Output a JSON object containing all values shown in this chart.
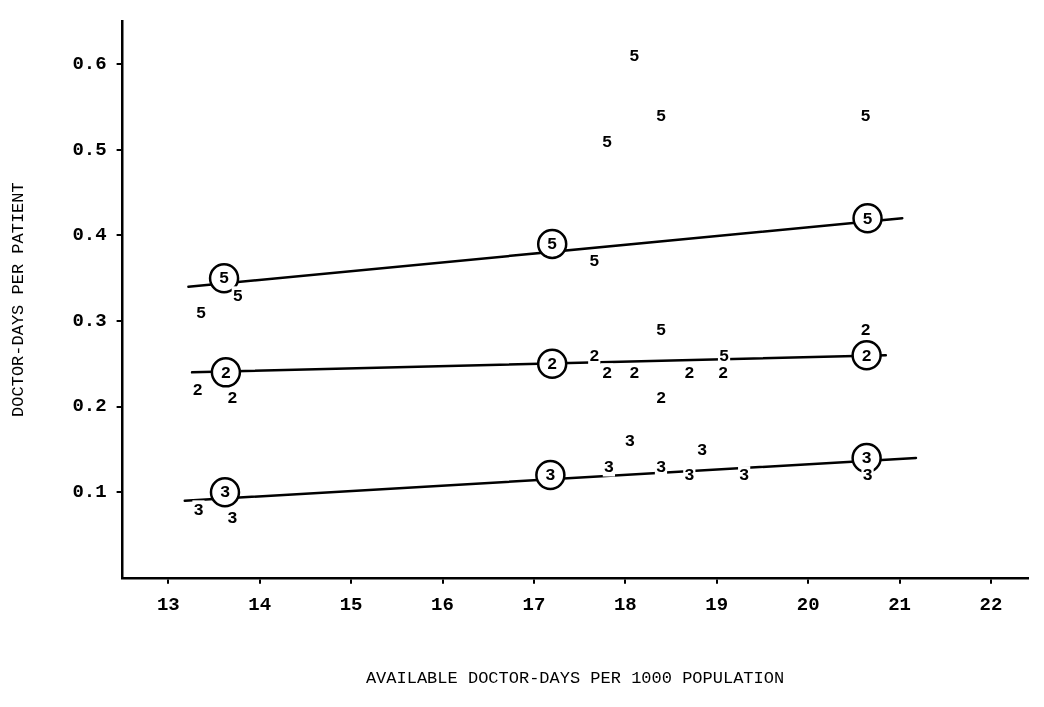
{
  "chart_data": {
    "type": "scatter",
    "xlabel": "AVAILABLE DOCTOR-DAYS PER 1000 POPULATION",
    "ylabel": "DOCTOR-DAYS PER PATIENT",
    "xlim": [
      12.5,
      22.4
    ],
    "ylim": [
      0,
      0.65
    ],
    "xticks": [
      13,
      14,
      15,
      16,
      17,
      18,
      19,
      20,
      21,
      22
    ],
    "yticks": [
      0.1,
      0.2,
      0.3,
      0.4,
      0.5,
      0.6
    ],
    "grid": false,
    "legend": false,
    "series": [
      {
        "name": "5",
        "color": "#000000",
        "marker": "circle",
        "x": [
          13.61,
          17.2,
          20.65
        ],
        "values": [
          0.35,
          0.39,
          0.42
        ]
      },
      {
        "name": "2",
        "color": "#000000",
        "marker": "circle",
        "x": [
          13.63,
          17.2,
          20.64
        ],
        "values": [
          0.24,
          0.25,
          0.26
        ]
      },
      {
        "name": "3",
        "color": "#000000",
        "marker": "circle",
        "x": [
          13.62,
          17.18,
          20.64
        ],
        "values": [
          0.1,
          0.12,
          0.14
        ]
      },
      {
        "type": "line",
        "color": "#000000",
        "x": [
          13.22,
          21.03
        ],
        "values": [
          0.34,
          0.42
        ]
      },
      {
        "type": "line",
        "color": "#000000",
        "x": [
          13.26,
          20.85
        ],
        "values": [
          0.24,
          0.26
        ]
      },
      {
        "type": "line",
        "color": "#000000",
        "x": [
          13.18,
          21.18
        ],
        "values": [
          0.09,
          0.14
        ]
      }
    ],
    "annotations": [
      {
        "text": "5",
        "x": 13.76,
        "y": 0.33
      },
      {
        "text": "5",
        "x": 13.36,
        "y": 0.31
      },
      {
        "text": "5",
        "x": 18.1,
        "y": 0.61
      },
      {
        "text": "5",
        "x": 18.39,
        "y": 0.54
      },
      {
        "text": "5",
        "x": 17.8,
        "y": 0.51
      },
      {
        "text": "5",
        "x": 20.63,
        "y": 0.54
      },
      {
        "text": "5",
        "x": 17.66,
        "y": 0.37
      },
      {
        "text": "5",
        "x": 18.39,
        "y": 0.29
      },
      {
        "text": "5",
        "x": 19.08,
        "y": 0.26
      },
      {
        "text": "2",
        "x": 13.32,
        "y": 0.22
      },
      {
        "text": "2",
        "x": 13.7,
        "y": 0.21
      },
      {
        "text": "2",
        "x": 17.66,
        "y": 0.26
      },
      {
        "text": "2",
        "x": 17.8,
        "y": 0.24
      },
      {
        "text": "2",
        "x": 18.1,
        "y": 0.24
      },
      {
        "text": "2",
        "x": 18.7,
        "y": 0.24
      },
      {
        "text": "2",
        "x": 19.07,
        "y": 0.24
      },
      {
        "text": "2",
        "x": 18.39,
        "y": 0.21
      },
      {
        "text": "2",
        "x": 20.63,
        "y": 0.29
      },
      {
        "text": "3",
        "x": 13.33,
        "y": 0.08
      },
      {
        "text": "3",
        "x": 13.7,
        "y": 0.07
      },
      {
        "text": "3",
        "x": 18.05,
        "y": 0.16
      },
      {
        "text": "3",
        "x": 17.82,
        "y": 0.13
      },
      {
        "text": "3",
        "x": 18.84,
        "y": 0.15
      },
      {
        "text": "3",
        "x": 18.39,
        "y": 0.13
      },
      {
        "text": "3",
        "x": 18.7,
        "y": 0.12
      },
      {
        "text": "3",
        "x": 19.3,
        "y": 0.12
      },
      {
        "text": "3",
        "x": 20.65,
        "y": 0.12
      }
    ]
  }
}
